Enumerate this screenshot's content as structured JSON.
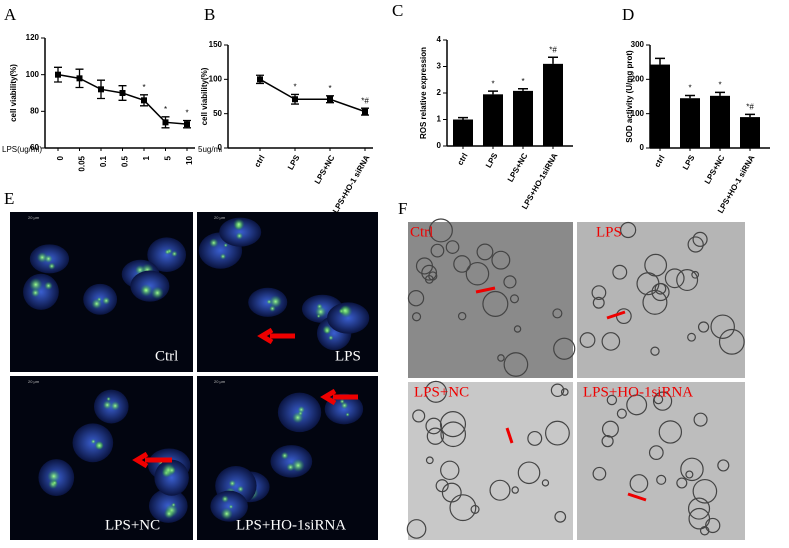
{
  "panels": [
    "A",
    "B",
    "C",
    "D",
    "E",
    "F"
  ],
  "chart_data": [
    {
      "type": "line",
      "ylabel": "cell viability(%)",
      "xlabel": "LPS(ug/ml)",
      "categories": [
        "0",
        "0.05",
        "0.1",
        "0.5",
        "1",
        "5",
        "10"
      ],
      "values": [
        100,
        98,
        92,
        90,
        86,
        74,
        73
      ],
      "errors": [
        4,
        5,
        5,
        4,
        3,
        3,
        2
      ],
      "significance": [
        null,
        null,
        null,
        null,
        "*",
        "*",
        "*"
      ],
      "ylim": [
        60,
        120
      ],
      "yticks": [
        60,
        80,
        100,
        120
      ],
      "color": "#000000"
    },
    {
      "type": "line",
      "ylabel": "cell viability(%)",
      "xlabel": "5ug/ml",
      "categories": [
        "ctrl",
        "LPS",
        "LPS+NC",
        "LPS+HO-1 siRNA"
      ],
      "values": [
        100,
        71,
        71,
        53
      ],
      "errors": [
        6,
        7,
        5,
        5
      ],
      "significance": [
        null,
        "*",
        "*",
        "*#"
      ],
      "ylim": [
        0,
        150
      ],
      "yticks": [
        0,
        50,
        100,
        150
      ],
      "color": "#000000"
    },
    {
      "type": "bar",
      "ylabel": "ROS relative expression",
      "categories": [
        "ctrl",
        "LPS",
        "LPS+NC",
        "LPS+HO-1siRNA"
      ],
      "values": [
        1.0,
        1.95,
        2.08,
        3.1
      ],
      "errors": [
        0.07,
        0.12,
        0.08,
        0.25
      ],
      "significance": [
        null,
        "*",
        "*",
        "*#"
      ],
      "ylim": [
        0,
        4
      ],
      "yticks": [
        0,
        1,
        2,
        3,
        4
      ],
      "color": "#000000"
    },
    {
      "type": "bar",
      "ylabel": "SOD activity (U/mg prot)",
      "categories": [
        "ctrl",
        "LPS",
        "LPS+NC",
        "LPS+HO-1 siRNA"
      ],
      "values": [
        243,
        145,
        152,
        90
      ],
      "errors": [
        18,
        8,
        10,
        8
      ],
      "significance": [
        null,
        "*",
        "*",
        "*#"
      ],
      "ylim": [
        0,
        300
      ],
      "yticks": [
        0,
        100,
        200,
        300
      ],
      "color": "#000000"
    }
  ],
  "images": {
    "E": {
      "labels": [
        "Ctrl",
        "LPS",
        "LPS+NC",
        "LPS+HO-1siRNA"
      ],
      "scale": "20 μm"
    },
    "F": {
      "labels": [
        "Ctrl",
        "LPS",
        "LPS+NC",
        "LPS+HO-1siRNA"
      ]
    }
  }
}
